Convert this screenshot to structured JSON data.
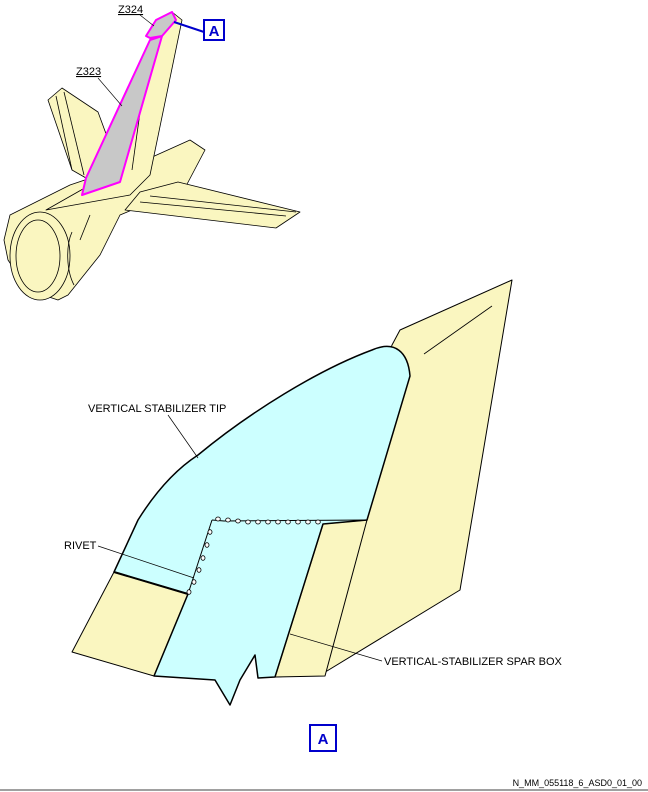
{
  "zones": {
    "upper": "Z324",
    "lower": "Z323"
  },
  "callouts": {
    "detail_ref_top": "A",
    "detail_ref_bottom": "A"
  },
  "labels": {
    "tip": "VERTICAL STABILIZER TIP",
    "rivet": "RIVET",
    "spar_box": "VERTICAL-STABILIZER SPAR BOX"
  },
  "footer": {
    "drawing_id": "N_MM_055118_6_ASD0_01_00"
  },
  "colors": {
    "structure": "#faf6c0",
    "tip_highlight": "#c8c8c8",
    "tip_detail": "#ccffff",
    "zone_outline": "#ff00ff",
    "callout": "#0000cc"
  }
}
